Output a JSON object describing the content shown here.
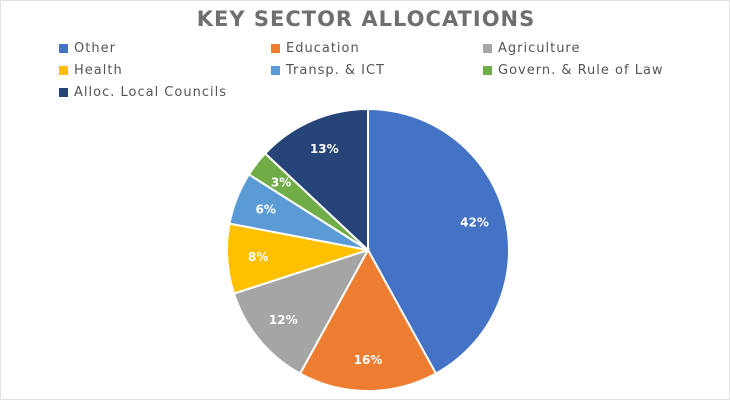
{
  "chart_data": {
    "type": "pie",
    "title": "KEY SECTOR ALLOCATIONS",
    "legend_placement": "top",
    "slices": [
      {
        "label": "Other",
        "value": 42,
        "display": "42%",
        "color": "#4472c4"
      },
      {
        "label": "Education",
        "value": 16,
        "display": "16%",
        "color": "#ed7d31"
      },
      {
        "label": "Agriculture",
        "value": 12,
        "display": "12%",
        "color": "#a5a5a5"
      },
      {
        "label": "Health",
        "value": 8,
        "display": "8%",
        "color": "#ffc000"
      },
      {
        "label": "Transp. & ICT",
        "value": 6,
        "display": "6%",
        "color": "#5b9bd5"
      },
      {
        "label": "Govern. & Rule of Law",
        "value": 3,
        "display": "3%",
        "color": "#70ad47"
      },
      {
        "label": "Alloc. Local Councils",
        "value": 13,
        "display": "13%",
        "color": "#264478"
      }
    ]
  }
}
